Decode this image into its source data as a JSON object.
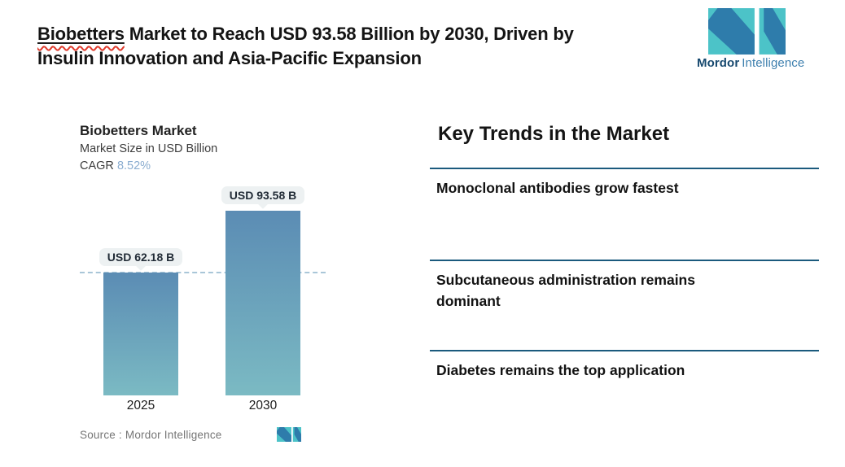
{
  "page": {
    "title_word": "Biobetters",
    "title_line1_rest": " Market to Reach USD 93.58 Billion by 2030, Driven by",
    "title_line2": "Insulin Innovation and Asia-Pacific Expansion"
  },
  "brand": {
    "name_primary": "Mordor",
    "name_secondary": "Intelligence",
    "colors": {
      "logo_blue": "#2e7cab",
      "logo_teal": "#4cc3c8",
      "text_navy": "#17496f",
      "text_blue": "#3d7fae"
    }
  },
  "chart_data": {
    "type": "bar",
    "title": "Biobetters Market",
    "subtitle": "Market Size in USD Billion",
    "cagr_label": "CAGR",
    "cagr_value": "8.52%",
    "categories": [
      "2025",
      "2030"
    ],
    "values": [
      62.18,
      93.58
    ],
    "value_labels": [
      "USD 62.18 B",
      "USD 93.58 B"
    ],
    "unit": "USD Billion",
    "reference_line_value": 62.18,
    "ylim": [
      0,
      100
    ],
    "bar_gradient_top": "#5b8cb4",
    "bar_gradient_bottom": "#7bbac3",
    "reference_line_color": "#a9c6d8",
    "source_label": "Source :",
    "source_value": "Mordor Intelligence"
  },
  "trends": {
    "heading": "Key Trends in the Market",
    "divider_color": "#1b5a7d",
    "items": [
      "Monoclonal antibodies grow fastest",
      "Subcutaneous administration remains dominant",
      "Diabetes remains the top application"
    ]
  }
}
